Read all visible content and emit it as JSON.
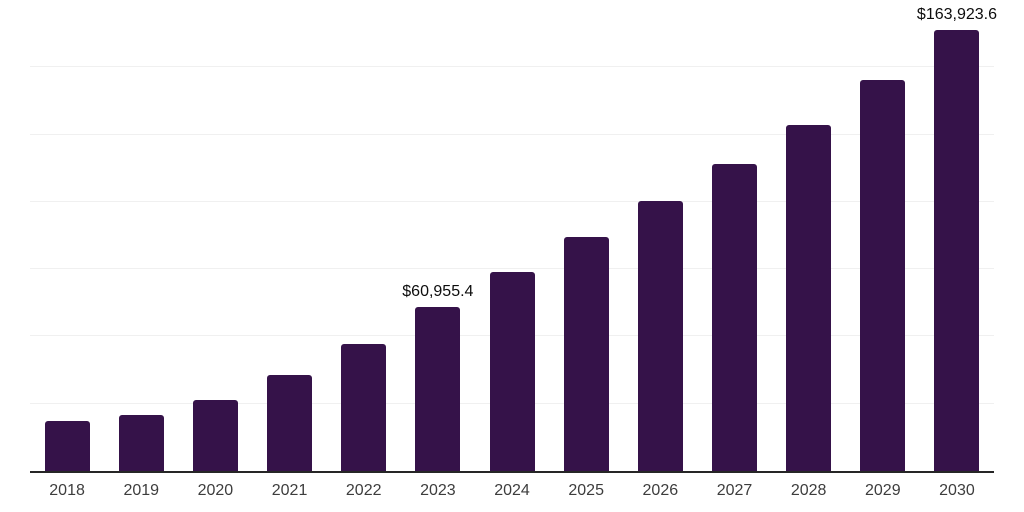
{
  "chart": {
    "bar_color": "#351249",
    "gridline_color": "#f0f0f0",
    "axis_color": "#262626",
    "tick_label_color": "#3d3d3d",
    "data_label_color": "#0d0d0d"
  },
  "chart_data": {
    "type": "bar",
    "title": "",
    "xlabel": "",
    "ylabel": "",
    "categories": [
      "2018",
      "2019",
      "2020",
      "2021",
      "2022",
      "2023",
      "2024",
      "2025",
      "2026",
      "2027",
      "2028",
      "2029",
      "2030"
    ],
    "values": [
      18700,
      20700,
      26500,
      35800,
      47200,
      60955.4,
      73900,
      86900,
      100200,
      114100,
      128400,
      145400,
      163923.6
    ],
    "data_labels": {
      "2023": "$60,955.4",
      "2030": "$163,923.6"
    },
    "ylim": [
      0,
      175000
    ],
    "gridline_step": 25000,
    "grid": "horizontal",
    "legend": "none",
    "y_axis_tick_labels_shown": false
  }
}
